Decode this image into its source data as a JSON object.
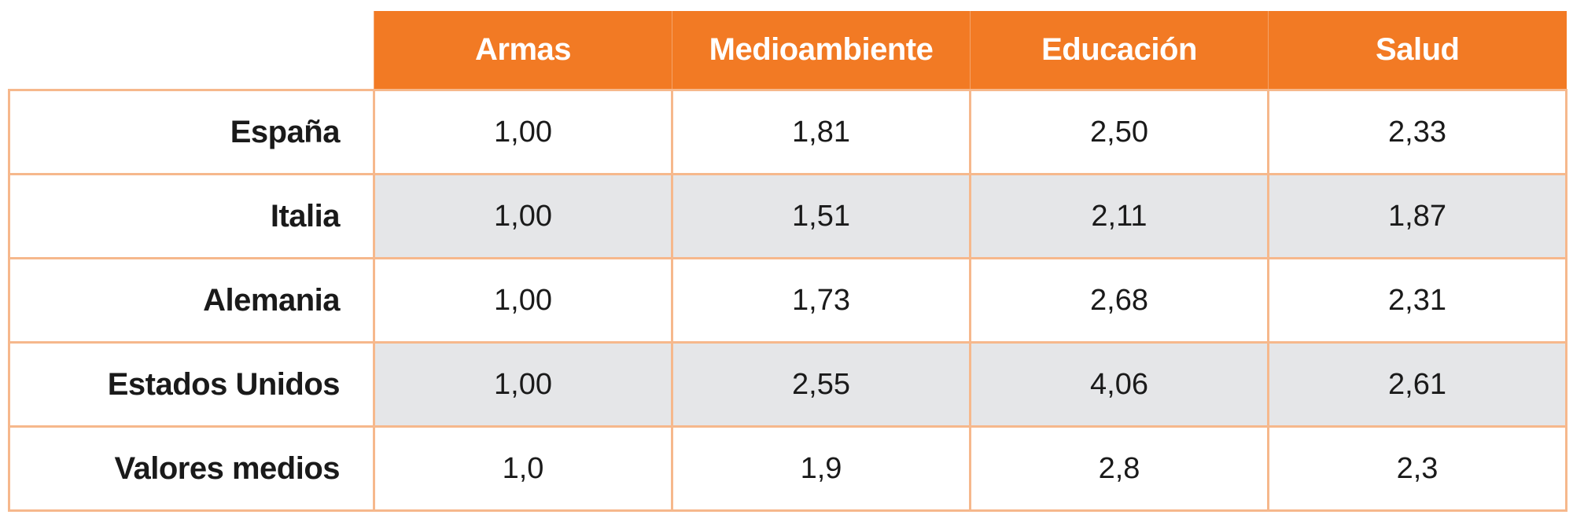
{
  "table": {
    "columns": [
      "Armas",
      "Medioambiente",
      "Educación",
      "Salud"
    ],
    "rows": [
      {
        "label": "España",
        "values": [
          "1,00",
          "1,81",
          "2,50",
          "2,33"
        ]
      },
      {
        "label": "Italia",
        "values": [
          "1,00",
          "1,51",
          "2,11",
          "1,87"
        ]
      },
      {
        "label": "Alemania",
        "values": [
          "1,00",
          "1,73",
          "2,68",
          "2,31"
        ]
      },
      {
        "label": "Estados Unidos",
        "values": [
          "1,00",
          "2,55",
          "4,06",
          "2,61"
        ]
      },
      {
        "label": "Valores medios",
        "values": [
          "1,0",
          "1,9",
          "2,8",
          "2,3"
        ]
      }
    ]
  },
  "colors": {
    "header_background": "#f27a24",
    "header_text": "#ffffff",
    "grid_border": "#f6b88c",
    "shaded_row": "#e5e6e8"
  }
}
